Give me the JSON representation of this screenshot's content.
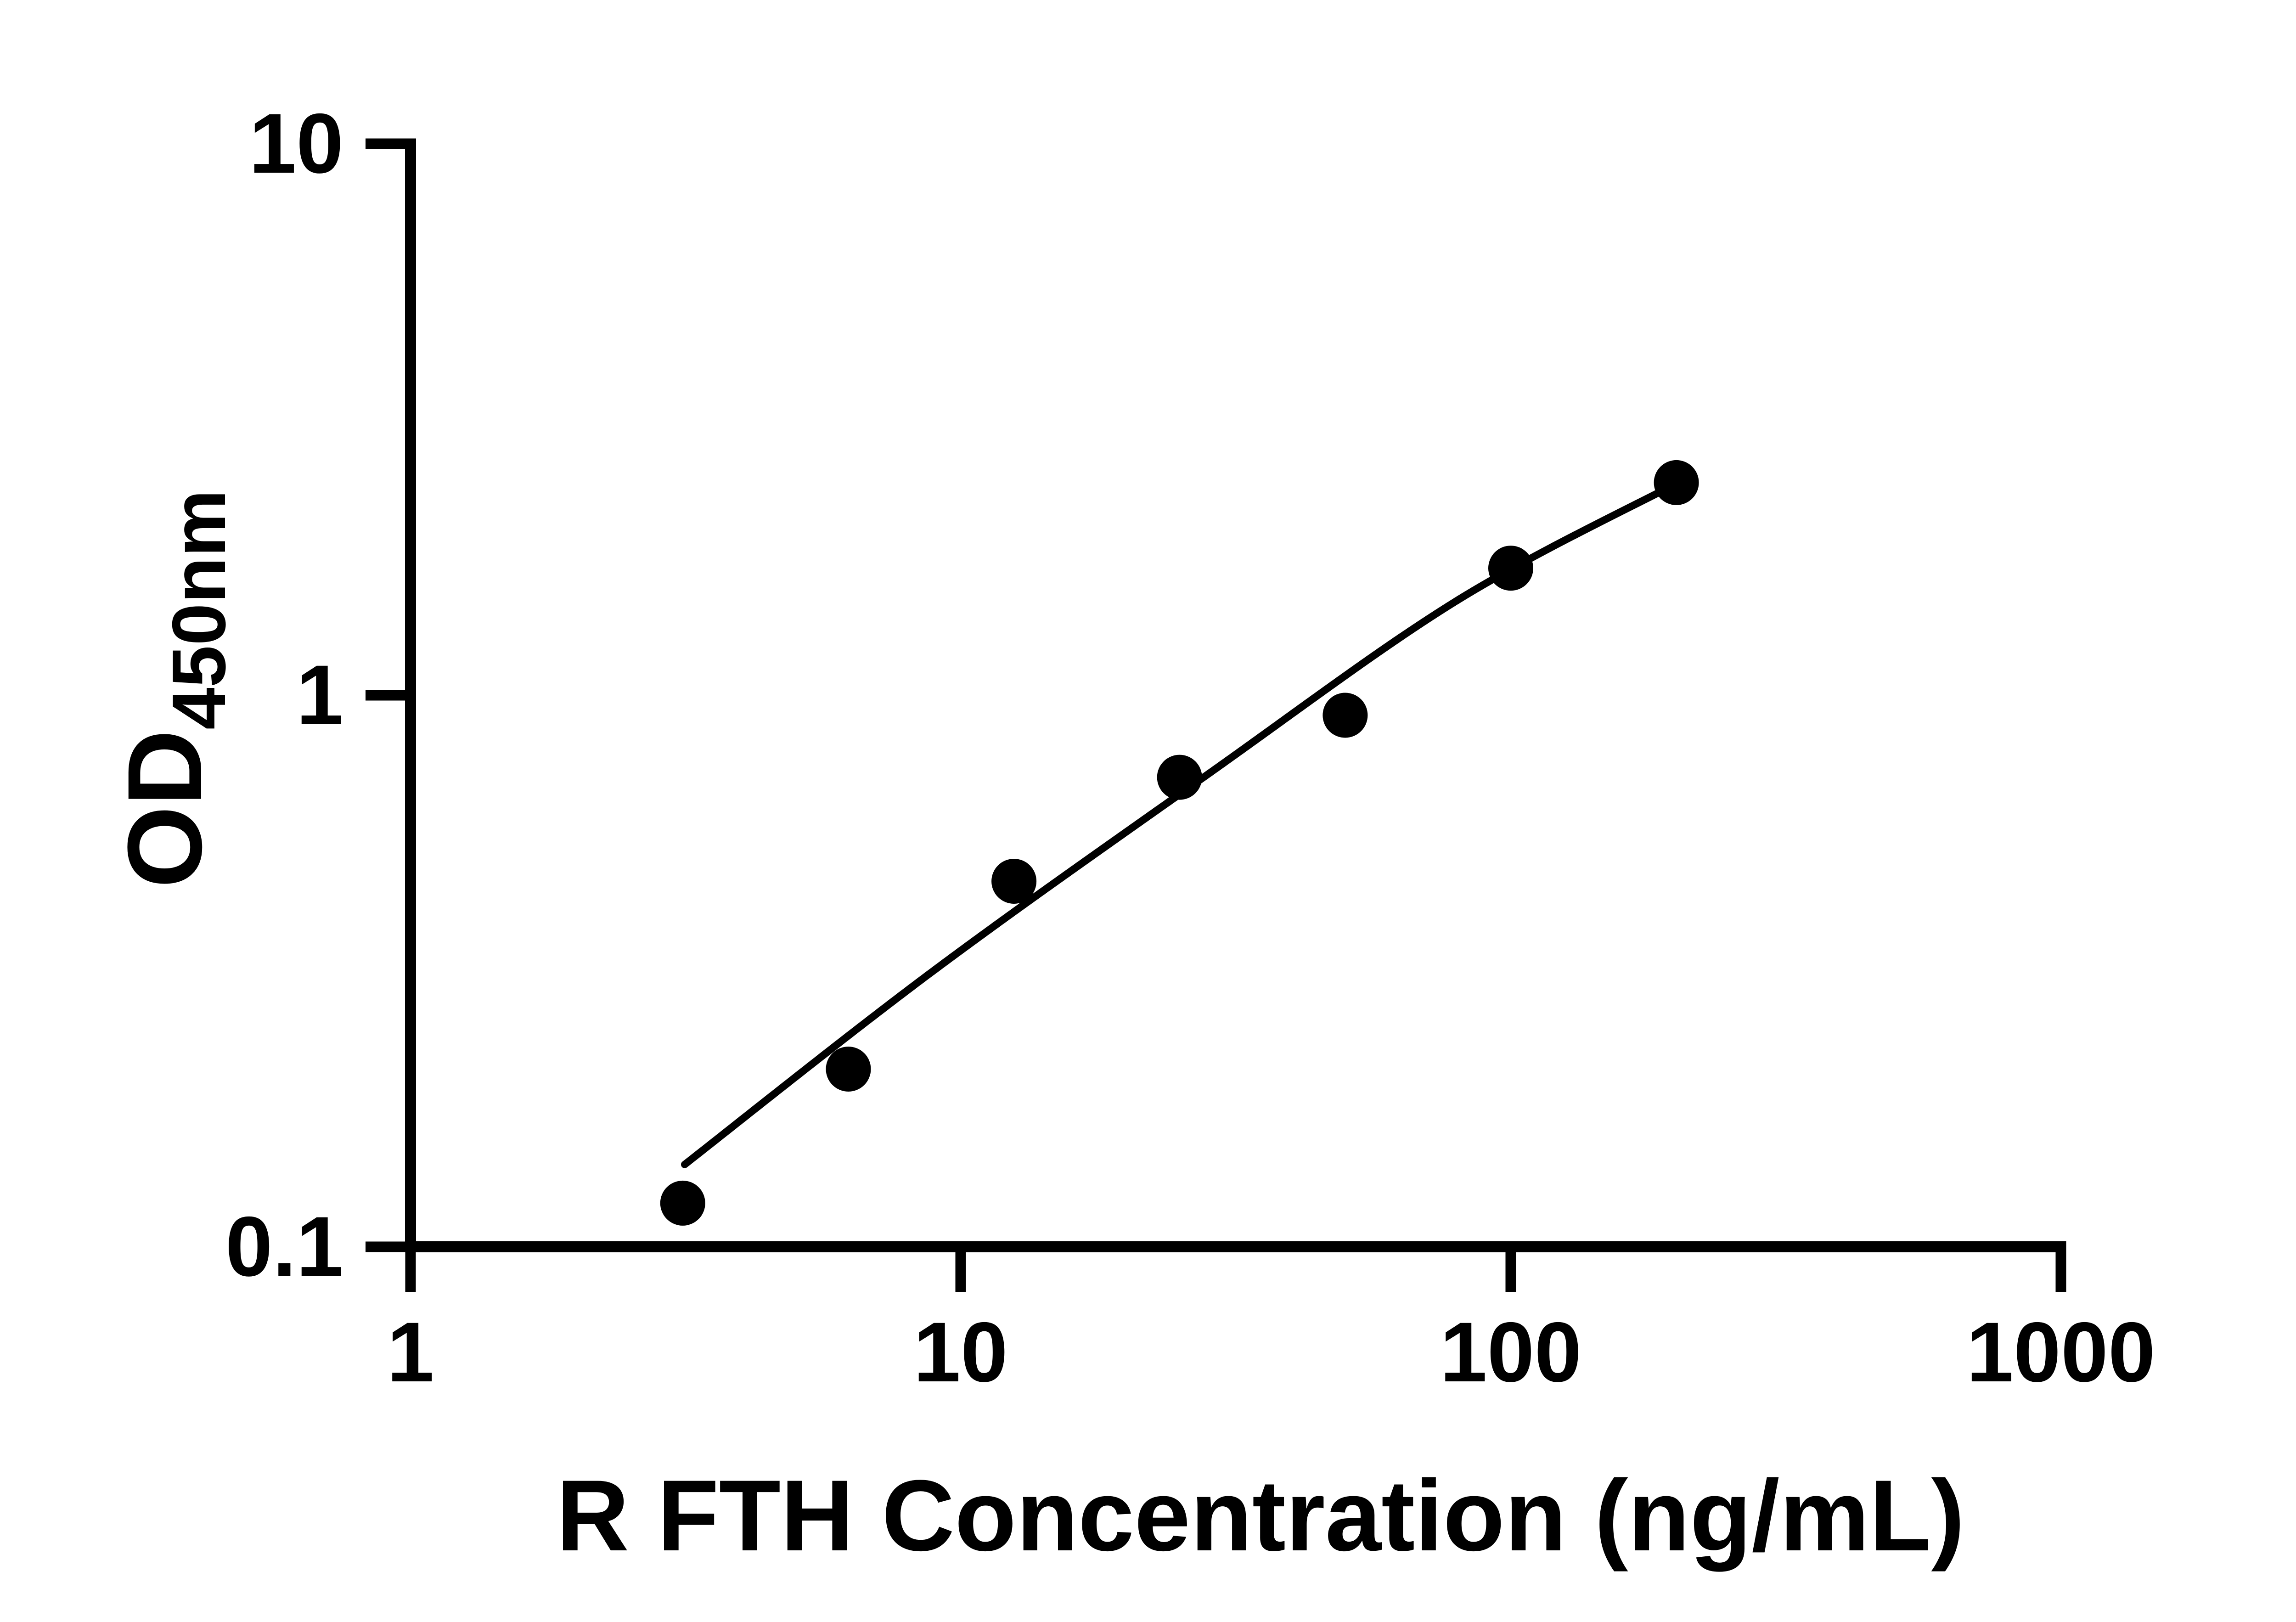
{
  "figure": {
    "background_color": "#ffffff",
    "ink_color": "#000000"
  },
  "chart_data": {
    "type": "scatter",
    "title": "",
    "xlabel": "R FTH Concentration (ng/mL)",
    "ylabel": "OD",
    "ylabel_subscript": "450nm",
    "x_scale": "log",
    "y_scale": "log",
    "xlim": [
      1,
      1000
    ],
    "ylim": [
      0.1,
      10
    ],
    "grid": false,
    "legend": null,
    "x_ticks": [
      {
        "value": 1,
        "label": "1"
      },
      {
        "value": 10,
        "label": "10"
      },
      {
        "value": 100,
        "label": "100"
      },
      {
        "value": 1000,
        "label": "1000"
      }
    ],
    "y_ticks": [
      {
        "value": 10,
        "label": "10"
      },
      {
        "value": 1,
        "label": "1"
      },
      {
        "value": 0.1,
        "label": "0.1"
      }
    ],
    "series": [
      {
        "name": "standard-points",
        "marker": "circle",
        "color": "#000000",
        "x": [
          3.125,
          6.25,
          12.5,
          25,
          50,
          100,
          200
        ],
        "values": [
          0.12,
          0.21,
          0.46,
          0.71,
          0.92,
          1.7,
          2.43
        ]
      }
    ],
    "fit_curve": {
      "name": "4pl-fit-line",
      "color": "#000000",
      "anchors_x": [
        3.15,
        8.9,
        28.2,
        79.4,
        201.4
      ],
      "anchors_od": [
        0.141,
        0.316,
        0.72,
        1.48,
        2.43
      ]
    }
  }
}
